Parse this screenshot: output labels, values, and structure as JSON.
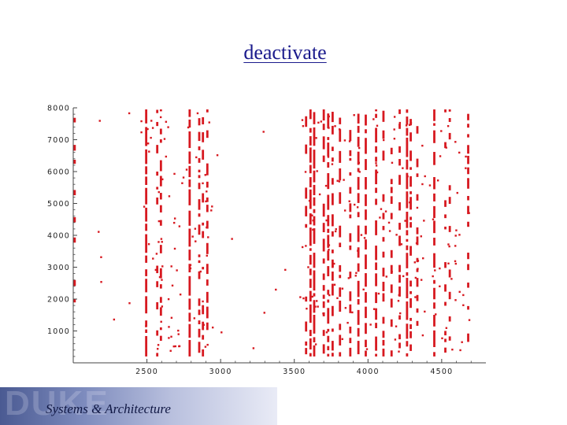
{
  "slide": {
    "title": "deactivate"
  },
  "footer": {
    "logo": "DUKE",
    "text": "Systems & Architecture"
  },
  "colors": {
    "marks": "#d71920",
    "axis": "#444444",
    "banner_start": "#4a5a92",
    "banner_end": "#e9ebf6"
  },
  "chart_data": {
    "type": "scatter",
    "title": "",
    "xlabel": "",
    "ylabel": "",
    "xlim": [
      2000,
      4800
    ],
    "ylim": [
      0,
      8000
    ],
    "x_ticks": [
      2500,
      3000,
      3500,
      4000,
      4500
    ],
    "y_ticks": [
      1000,
      2000,
      3000,
      4000,
      5000,
      6000,
      7000,
      8000
    ],
    "grid": false,
    "legend": "none",
    "columns": [
      {
        "x": 2010,
        "density": 0.18
      },
      {
        "x": 2495,
        "density": 0.95
      },
      {
        "x": 2570,
        "density": 0.35
      },
      {
        "x": 2595,
        "density": 0.45
      },
      {
        "x": 2790,
        "density": 0.9
      },
      {
        "x": 2855,
        "density": 0.45
      },
      {
        "x": 2880,
        "density": 0.4
      },
      {
        "x": 2910,
        "density": 0.5
      },
      {
        "x": 3580,
        "density": 0.45
      },
      {
        "x": 3610,
        "density": 0.9
      },
      {
        "x": 3635,
        "density": 0.95
      },
      {
        "x": 3700,
        "density": 0.55
      },
      {
        "x": 3730,
        "density": 0.7
      },
      {
        "x": 3760,
        "density": 0.5
      },
      {
        "x": 3810,
        "density": 0.55
      },
      {
        "x": 3880,
        "density": 0.5
      },
      {
        "x": 3935,
        "density": 0.75
      },
      {
        "x": 3985,
        "density": 0.7
      },
      {
        "x": 4055,
        "density": 0.65
      },
      {
        "x": 4105,
        "density": 0.5
      },
      {
        "x": 4160,
        "density": 0.35
      },
      {
        "x": 4215,
        "density": 0.4
      },
      {
        "x": 4265,
        "density": 0.95
      },
      {
        "x": 4290,
        "density": 0.55
      },
      {
        "x": 4335,
        "density": 0.35
      },
      {
        "x": 4450,
        "density": 0.8
      },
      {
        "x": 4525,
        "density": 0.25
      },
      {
        "x": 4555,
        "density": 0.3
      },
      {
        "x": 4680,
        "density": 0.4
      }
    ],
    "scatter_count": 260
  }
}
